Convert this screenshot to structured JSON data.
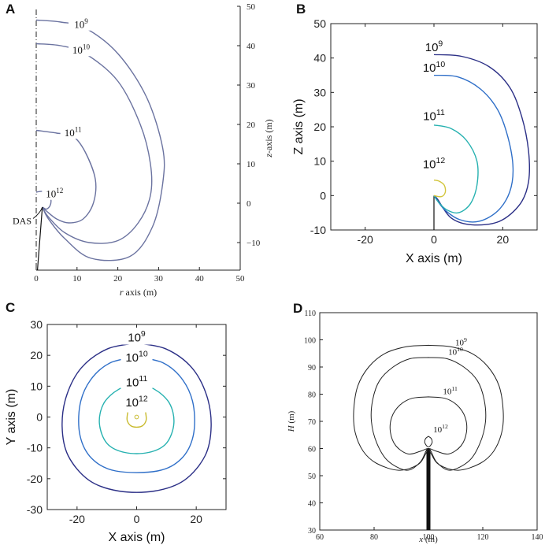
{
  "chart_data": [
    {
      "panel": "A",
      "type": "line",
      "title": "",
      "xlabel": "r axis (m)",
      "ylabel": "z-axis (m)",
      "xlim": [
        0,
        50
      ],
      "ylim": [
        -17,
        50
      ],
      "xticks": [
        "0",
        "10",
        "20",
        "30",
        "40",
        "50"
      ],
      "yticks": [
        "50",
        "40",
        "30",
        "20",
        "10",
        "0",
        "−10"
      ],
      "series": [
        {
          "name": "10^9",
          "base": "10",
          "exp": "9",
          "label_at": [
            11,
            44.5
          ],
          "points": [
            [
              0,
              46.5
            ],
            [
              6,
              46
            ],
            [
              12,
              44.5
            ],
            [
              20,
              38
            ],
            [
              27,
              27
            ],
            [
              31,
              14
            ],
            [
              31,
              5
            ],
            [
              28.5,
              -6
            ],
            [
              23,
              -13.5
            ],
            [
              13.5,
              -14
            ],
            [
              7,
              -9
            ],
            [
              3,
              -4
            ],
            [
              1.5,
              -1
            ]
          ]
        },
        {
          "name": "10^10",
          "base": "10",
          "exp": "10",
          "label_at": [
            11,
            38
          ],
          "points": [
            [
              0,
              40.5
            ],
            [
              6,
              40
            ],
            [
              12,
              38
            ],
            [
              20,
              31
            ],
            [
              25.5,
              20
            ],
            [
              28,
              10
            ],
            [
              28,
              2
            ],
            [
              25,
              -5
            ],
            [
              20,
              -9.5
            ],
            [
              13,
              -10
            ],
            [
              7,
              -7.5
            ],
            [
              3,
              -3.5
            ],
            [
              1.5,
              -1
            ]
          ]
        },
        {
          "name": "10^11",
          "base": "10",
          "exp": "11",
          "label_at": [
            9,
            17
          ],
          "points": [
            [
              0,
              18.5
            ],
            [
              5,
              17.8
            ],
            [
              9,
              17
            ],
            [
              12,
              13
            ],
            [
              14.5,
              6
            ],
            [
              14,
              0
            ],
            [
              11.5,
              -4
            ],
            [
              8,
              -5
            ],
            [
              5,
              -4
            ],
            [
              2.5,
              -2
            ],
            [
              1.5,
              -1
            ]
          ]
        },
        {
          "name": "10^12",
          "base": "10",
          "exp": "12",
          "label_at": [
            4.5,
            1.5
          ],
          "points": [
            [
              0,
              2.8
            ],
            [
              1.5,
              3
            ],
            [
              3,
              2.3
            ],
            [
              3.6,
              1
            ],
            [
              3.4,
              -0.6
            ],
            [
              2.5,
              -1.5
            ],
            [
              1.5,
              -1
            ]
          ]
        }
      ],
      "annotations": [
        {
          "text": "DAS",
          "at": [
            0,
            -4.5
          ]
        }
      ]
    },
    {
      "panel": "B",
      "type": "line",
      "title": "",
      "xlabel": "X axis (m)",
      "ylabel": "Z axis (m)",
      "xlim": [
        -30,
        30
      ],
      "ylim": [
        -10,
        50
      ],
      "xticks": [
        "-20",
        "0",
        "20"
      ],
      "yticks": [
        "50",
        "40",
        "30",
        "20",
        "10",
        "0",
        "-10"
      ],
      "series": [
        {
          "name": "10^9",
          "base": "10",
          "exp": "9",
          "color": "#2b2f86",
          "label_at": [
            0,
            42
          ],
          "points": [
            [
              0,
              41
            ],
            [
              8,
              40.5
            ],
            [
              16,
              37.5
            ],
            [
              22,
              31.5
            ],
            [
              25.5,
              23
            ],
            [
              27.5,
              13
            ],
            [
              27.5,
              4
            ],
            [
              25,
              -2.5
            ],
            [
              19,
              -7.5
            ],
            [
              11,
              -8.5
            ],
            [
              5,
              -6.5
            ],
            [
              1,
              -1
            ],
            [
              0,
              0
            ]
          ]
        },
        {
          "name": "10^10",
          "base": "10",
          "exp": "10",
          "color": "#2f6fc8",
          "label_at": [
            0,
            36
          ],
          "points": [
            [
              0,
              35
            ],
            [
              7,
              34.5
            ],
            [
              13.5,
              31
            ],
            [
              18.5,
              25
            ],
            [
              21.5,
              17
            ],
            [
              23,
              8
            ],
            [
              22,
              1
            ],
            [
              18.5,
              -4.5
            ],
            [
              13,
              -7.5
            ],
            [
              7.5,
              -7
            ],
            [
              3,
              -4
            ],
            [
              0,
              0
            ]
          ]
        },
        {
          "name": "10^11",
          "base": "10",
          "exp": "11",
          "color": "#26b1b0",
          "label_at": [
            0,
            22
          ],
          "points": [
            [
              0,
              20.5
            ],
            [
              5,
              19.5
            ],
            [
              9.5,
              16
            ],
            [
              12.5,
              10
            ],
            [
              12.5,
              3
            ],
            [
              10.5,
              -2.5
            ],
            [
              7,
              -5
            ],
            [
              3.5,
              -4
            ],
            [
              1,
              -1.5
            ],
            [
              0,
              0
            ]
          ]
        },
        {
          "name": "10^12",
          "base": "10",
          "exp": "12",
          "color": "#d2c53b",
          "label_at": [
            0,
            8
          ],
          "points": [
            [
              0,
              4.5
            ],
            [
              1.5,
              4.2
            ],
            [
              3,
              3
            ],
            [
              3.3,
              1
            ],
            [
              2.2,
              -0.3
            ],
            [
              0,
              0
            ]
          ]
        }
      ],
      "annotations": []
    },
    {
      "panel": "C",
      "type": "line",
      "title": "",
      "xlabel": "X axis (m)",
      "ylabel": "Y axis (m)",
      "xlim": [
        -30,
        30
      ],
      "ylim": [
        -30,
        30
      ],
      "xticks": [
        "-20",
        "0",
        "20"
      ],
      "yticks": [
        "30",
        "20",
        "10",
        "0",
        "-10",
        "-20",
        "-30"
      ],
      "series": [
        {
          "name": "10^9",
          "base": "10",
          "exp": "9",
          "color": "#2b2f86",
          "label_at": [
            0,
            24.5
          ],
          "points": [
            [
              0,
              24
            ],
            [
              10,
              22
            ],
            [
              18.5,
              16
            ],
            [
              23.5,
              7
            ],
            [
              25,
              -3
            ],
            [
              23,
              -12.5
            ],
            [
              16,
              -20.5
            ],
            [
              6,
              -24
            ],
            [
              -6,
              -24
            ],
            [
              -16,
              -20.5
            ],
            [
              -23,
              -12.5
            ],
            [
              -25,
              -3
            ],
            [
              -23.5,
              7
            ],
            [
              -18.5,
              16
            ],
            [
              -10,
              22
            ],
            [
              0,
              24
            ]
          ]
        },
        {
          "name": "10^10",
          "base": "10",
          "exp": "10",
          "color": "#2f6fc8",
          "label_at": [
            0,
            18
          ],
          "points": [
            [
              0,
              19.5
            ],
            [
              9,
              17.5
            ],
            [
              15.5,
              12
            ],
            [
              19,
              4
            ],
            [
              19,
              -6
            ],
            [
              15,
              -13.5
            ],
            [
              7,
              -17.5
            ],
            [
              -7,
              -17.5
            ],
            [
              -15,
              -13.5
            ],
            [
              -19,
              -6
            ],
            [
              -19,
              4
            ],
            [
              -15.5,
              12
            ],
            [
              -9,
              17.5
            ],
            [
              0,
              19.5
            ]
          ]
        },
        {
          "name": "10^11",
          "base": "10",
          "exp": "11",
          "color": "#26b1b0",
          "label_at": [
            0,
            10
          ],
          "points": [
            [
              0,
              10.5
            ],
            [
              6,
              9
            ],
            [
              11,
              4.5
            ],
            [
              12.5,
              -2
            ],
            [
              10,
              -8.5
            ],
            [
              4,
              -11.5
            ],
            [
              -4,
              -11.5
            ],
            [
              -10,
              -8.5
            ],
            [
              -12.5,
              -2
            ],
            [
              -11,
              4.5
            ],
            [
              -6,
              9
            ],
            [
              0,
              10.5
            ]
          ]
        },
        {
          "name": "10^12",
          "base": "10",
          "exp": "12",
          "color": "#c9bb2f",
          "label_at": [
            0,
            3.5
          ],
          "points": [
            [
              -3,
              1.5
            ],
            [
              -3.2,
              -1
            ],
            [
              -2,
              -2.8
            ],
            [
              0,
              -3.3
            ],
            [
              2,
              -2.8
            ],
            [
              3.2,
              -1
            ],
            [
              3,
              1.5
            ]
          ]
        }
      ],
      "annotations": []
    },
    {
      "panel": "D",
      "type": "line",
      "title": "",
      "xlabel": "x (m)",
      "ylabel": "H (m)",
      "xlim": [
        60,
        140
      ],
      "ylim": [
        30,
        110
      ],
      "xticks": [
        "60",
        "80",
        "100",
        "120",
        "140"
      ],
      "yticks": [
        "110",
        "100",
        "90",
        "80",
        "70",
        "60",
        "50",
        "40",
        "30"
      ],
      "series": [
        {
          "name": "10^9",
          "base": "10",
          "exp": "9",
          "label_at": [
            112,
            98
          ],
          "points": [
            [
              100,
              98
            ],
            [
              108,
              97.5
            ],
            [
              116,
              95
            ],
            [
              122,
              90
            ],
            [
              126,
              83
            ],
            [
              127.5,
              74
            ],
            [
              127,
              66
            ],
            [
              124,
              59
            ],
            [
              119,
              54.5
            ],
            [
              111,
              52
            ],
            [
              104,
              54
            ],
            [
              101,
              58
            ],
            [
              100,
              60
            ],
            [
              99,
              58
            ],
            [
              96,
              54
            ],
            [
              89,
              52
            ],
            [
              81,
              54.5
            ],
            [
              76,
              59
            ],
            [
              73,
              66
            ],
            [
              72.5,
              74
            ],
            [
              74,
              83
            ],
            [
              78,
              90
            ],
            [
              84,
              95
            ],
            [
              92,
              97.5
            ],
            [
              100,
              98
            ]
          ]
        },
        {
          "name": "10^10",
          "base": "10",
          "exp": "10",
          "label_at": [
            110,
            94.5
          ],
          "points": [
            [
              100,
              93.5
            ],
            [
              107,
              93
            ],
            [
              113,
              90
            ],
            [
              118,
              85
            ],
            [
              120.5,
              78
            ],
            [
              121,
              70
            ],
            [
              119,
              62
            ],
            [
              115,
              55.5
            ],
            [
              108,
              52
            ],
            [
              103,
              55
            ],
            [
              100,
              60
            ],
            [
              97,
              55
            ],
            [
              92,
              52
            ],
            [
              85,
              55.5
            ],
            [
              81,
              62
            ],
            [
              79,
              70
            ],
            [
              79.5,
              78
            ],
            [
              82,
              85
            ],
            [
              87,
              90
            ],
            [
              93,
              93
            ],
            [
              100,
              93.5
            ]
          ]
        },
        {
          "name": "10^11",
          "base": "10",
          "exp": "11",
          "label_at": [
            108,
            80
          ],
          "points": [
            [
              100,
              79
            ],
            [
              106,
              78.5
            ],
            [
              110.5,
              76
            ],
            [
              113.5,
              71.5
            ],
            [
              114,
              66
            ],
            [
              112,
              61
            ],
            [
              107.5,
              58
            ],
            [
              103,
              59
            ],
            [
              100,
              60
            ],
            [
              97,
              59
            ],
            [
              92.5,
              58
            ],
            [
              88,
              61
            ],
            [
              86,
              66
            ],
            [
              86.5,
              71.5
            ],
            [
              89.5,
              76
            ],
            [
              94,
              78.5
            ],
            [
              100,
              79
            ]
          ]
        },
        {
          "name": "10^12",
          "base": "10",
          "exp": "12",
          "label_at": [
            104.5,
            66
          ],
          "points": [
            [
              100,
              64.5
            ],
            [
              101,
              63.7
            ],
            [
              101.4,
              62.4
            ],
            [
              100.8,
              61.2
            ],
            [
              100,
              60.6
            ],
            [
              99.2,
              61.2
            ],
            [
              98.6,
              62.4
            ],
            [
              99,
              63.7
            ],
            [
              100,
              64.5
            ]
          ]
        }
      ],
      "annotations": []
    }
  ]
}
